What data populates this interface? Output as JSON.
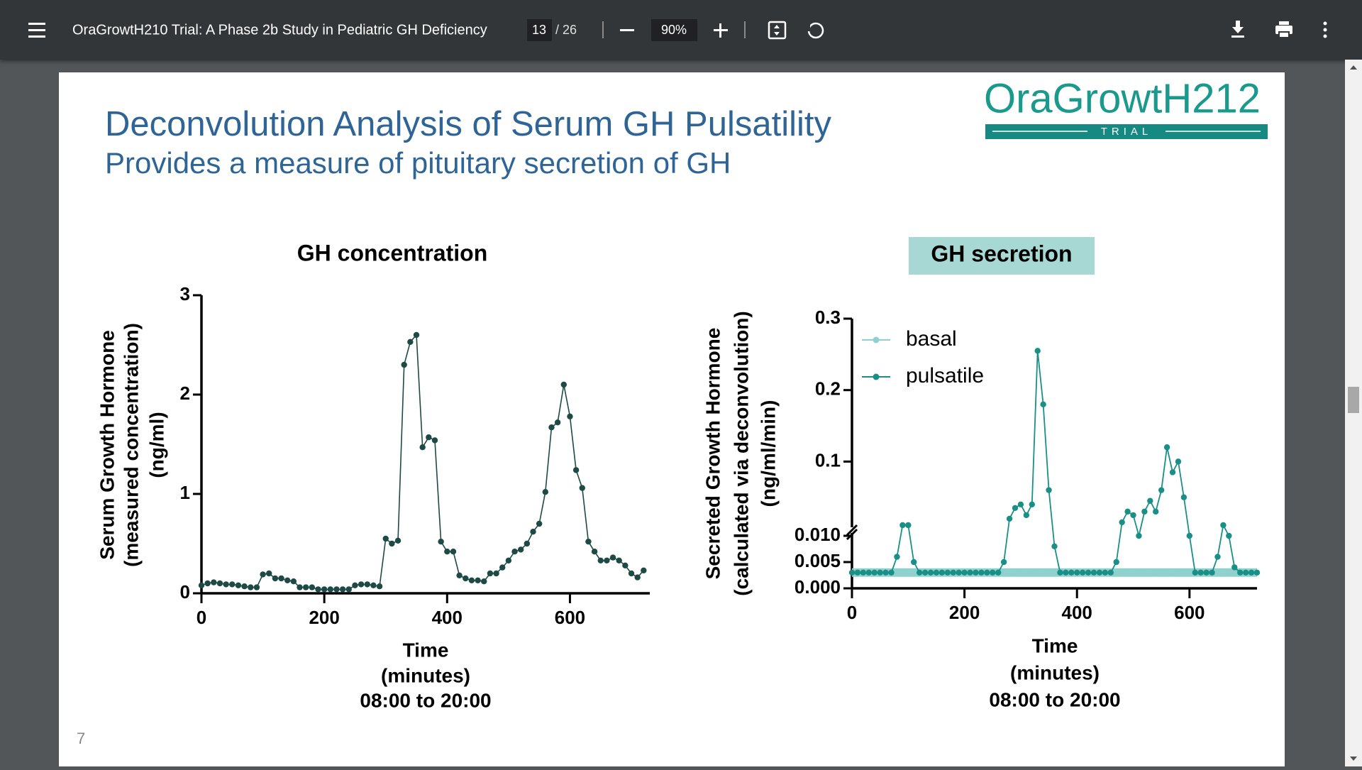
{
  "viewer": {
    "document_title": "OraGrowtH210 Trial: A Phase 2b Study in Pediatric GH Deficiency",
    "page_current": "13",
    "page_total": "/ 26",
    "zoom": "90%"
  },
  "slide": {
    "title": "Deconvolution Analysis of Serum GH Pulsatility",
    "subtitle": "Provides a measure of pituitary secretion of GH",
    "logo": "OraGrowtH212",
    "logo_tag": "TRIAL",
    "page_number": "7"
  },
  "chart_data": [
    {
      "type": "line",
      "title": "GH concentration",
      "y_label": [
        "Serum Growth Hormone",
        "(measured concentration)",
        "(ng/ml)"
      ],
      "x_label": [
        "Time",
        "(minutes)",
        "08:00 to 20:00"
      ],
      "x": [
        0,
        10,
        20,
        30,
        40,
        50,
        60,
        70,
        80,
        90,
        100,
        110,
        120,
        130,
        140,
        150,
        160,
        170,
        180,
        190,
        200,
        210,
        220,
        230,
        240,
        250,
        260,
        270,
        280,
        290,
        300,
        310,
        320,
        330,
        340,
        350,
        360,
        370,
        380,
        390,
        400,
        410,
        420,
        430,
        440,
        450,
        460,
        470,
        480,
        490,
        500,
        510,
        520,
        530,
        540,
        550,
        560,
        570,
        580,
        590,
        600,
        610,
        620,
        630,
        640,
        650,
        660,
        670,
        680,
        690,
        700,
        710,
        720
      ],
      "series": [
        {
          "color": "#1e4a45",
          "values": [
            0.08,
            0.1,
            0.11,
            0.1,
            0.09,
            0.09,
            0.08,
            0.07,
            0.06,
            0.06,
            0.19,
            0.2,
            0.15,
            0.15,
            0.13,
            0.12,
            0.06,
            0.06,
            0.06,
            0.04,
            0.04,
            0.04,
            0.04,
            0.04,
            0.04,
            0.08,
            0.09,
            0.09,
            0.08,
            0.07,
            0.55,
            0.5,
            0.53,
            2.3,
            2.53,
            2.6,
            1.47,
            1.57,
            1.54,
            0.52,
            0.42,
            0.42,
            0.18,
            0.15,
            0.13,
            0.13,
            0.12,
            0.2,
            0.2,
            0.26,
            0.33,
            0.42,
            0.44,
            0.5,
            0.62,
            0.7,
            1.02,
            1.67,
            1.72,
            2.1,
            1.78,
            1.24,
            1.06,
            0.52,
            0.42,
            0.33,
            0.33,
            0.36,
            0.33,
            0.28,
            0.2,
            0.16,
            0.23
          ]
        }
      ],
      "xlim": [
        0,
        730
      ],
      "xticks": [
        0,
        200,
        400,
        600
      ],
      "ylim": [
        0,
        3
      ],
      "yticks": [
        0,
        1,
        2,
        3
      ]
    },
    {
      "type": "line",
      "title": "GH secretion",
      "y_label": [
        "Secreted Growth Hormone",
        "(calculated via deconvolution)",
        "(ng/ml/min)"
      ],
      "x_label": [
        "Time",
        "(minutes)",
        "08:00 to 20:00"
      ],
      "x": [
        0,
        10,
        20,
        30,
        40,
        50,
        60,
        70,
        80,
        90,
        100,
        110,
        120,
        130,
        140,
        150,
        160,
        170,
        180,
        190,
        200,
        210,
        220,
        230,
        240,
        250,
        260,
        270,
        280,
        290,
        300,
        310,
        320,
        330,
        340,
        350,
        360,
        370,
        380,
        390,
        400,
        410,
        420,
        430,
        440,
        450,
        460,
        470,
        480,
        490,
        500,
        510,
        520,
        530,
        540,
        550,
        560,
        570,
        580,
        590,
        600,
        610,
        620,
        630,
        640,
        650,
        660,
        670,
        680,
        690,
        700,
        710,
        720
      ],
      "series": [
        {
          "name": "basal",
          "color": "#8fd1cc",
          "values": [
            0.003,
            0.003,
            0.003,
            0.003,
            0.003,
            0.003,
            0.003,
            0.003,
            0.003,
            0.003,
            0.003,
            0.003,
            0.003,
            0.003,
            0.003,
            0.003,
            0.003,
            0.003,
            0.003,
            0.003,
            0.003,
            0.003,
            0.003,
            0.003,
            0.003,
            0.003,
            0.003,
            0.003,
            0.003,
            0.003,
            0.003,
            0.003,
            0.003,
            0.003,
            0.003,
            0.003,
            0.003,
            0.003,
            0.003,
            0.003,
            0.003,
            0.003,
            0.003,
            0.003,
            0.003,
            0.003,
            0.003,
            0.003,
            0.003,
            0.003,
            0.003,
            0.003,
            0.003,
            0.003,
            0.003,
            0.003,
            0.003,
            0.003,
            0.003,
            0.003,
            0.003,
            0.003,
            0.003,
            0.003,
            0.003,
            0.003,
            0.003,
            0.003,
            0.003,
            0.003,
            0.003,
            0.003,
            0.003
          ]
        },
        {
          "name": "pulsatile",
          "color": "#1a8f88",
          "values": [
            0.003,
            0.003,
            0.003,
            0.003,
            0.003,
            0.003,
            0.003,
            0.003,
            0.006,
            0.011,
            0.011,
            0.005,
            0.003,
            0.003,
            0.003,
            0.003,
            0.003,
            0.003,
            0.003,
            0.003,
            0.003,
            0.003,
            0.003,
            0.003,
            0.003,
            0.003,
            0.003,
            0.005,
            0.02,
            0.035,
            0.04,
            0.025,
            0.04,
            0.255,
            0.18,
            0.06,
            0.008,
            0.003,
            0.003,
            0.003,
            0.003,
            0.003,
            0.003,
            0.003,
            0.003,
            0.003,
            0.003,
            0.005,
            0.015,
            0.03,
            0.025,
            0.01,
            0.03,
            0.045,
            0.03,
            0.06,
            0.12,
            0.085,
            0.1,
            0.05,
            0.01,
            0.003,
            0.003,
            0.003,
            0.003,
            0.006,
            0.011,
            0.01,
            0.004,
            0.003,
            0.003,
            0.003,
            0.003
          ]
        }
      ],
      "xlim": [
        0,
        720
      ],
      "xticks": [
        0,
        200,
        400,
        600
      ],
      "ylim": [
        0,
        0.3
      ],
      "y_break": 0.01,
      "yticks": [
        {
          "value": 0,
          "label": "0.000"
        },
        {
          "value": 0.005,
          "label": "0.005"
        },
        {
          "value": 0.01,
          "label": "0.010"
        },
        0.1,
        0.2,
        0.3
      ],
      "legend": "upper left"
    }
  ]
}
